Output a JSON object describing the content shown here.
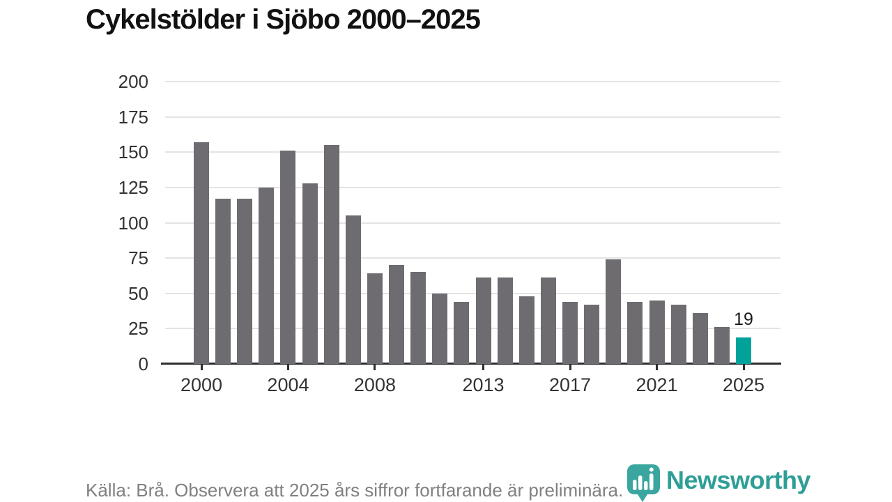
{
  "title": "Cykelstölder i Sjöbo 2000–2025",
  "chart_data": {
    "type": "bar",
    "title": "Cykelstölder i Sjöbo 2000–2025",
    "x": [
      2000,
      2001,
      2002,
      2003,
      2004,
      2005,
      2006,
      2007,
      2008,
      2009,
      2010,
      2011,
      2012,
      2013,
      2014,
      2015,
      2016,
      2017,
      2018,
      2019,
      2020,
      2021,
      2022,
      2023,
      2024,
      2025
    ],
    "values": [
      157,
      117,
      117,
      125,
      151,
      128,
      155,
      105,
      64,
      70,
      65,
      50,
      44,
      61,
      61,
      48,
      61,
      44,
      42,
      74,
      44,
      45,
      42,
      36,
      26,
      19
    ],
    "xlabel": "",
    "ylabel": "",
    "ylim": [
      0,
      200
    ],
    "y_ticks": [
      0,
      25,
      50,
      75,
      100,
      125,
      150,
      175,
      200
    ],
    "x_tick_labels": [
      "2000",
      "2004",
      "2008",
      "2013",
      "2017",
      "2021",
      "2025"
    ],
    "grid": true,
    "legend": "none",
    "bar_color": "#6E6C71",
    "highlight_year": 2025,
    "highlight_color": "#00A29A",
    "highlight_value_label": "19"
  },
  "footer": {
    "source_note": "Källa: Brå. Observera att 2025 års siffror fortfarande är preliminära."
  },
  "branding": {
    "logo_text": "Newsworthy",
    "logo_color": "#2E9E97"
  }
}
